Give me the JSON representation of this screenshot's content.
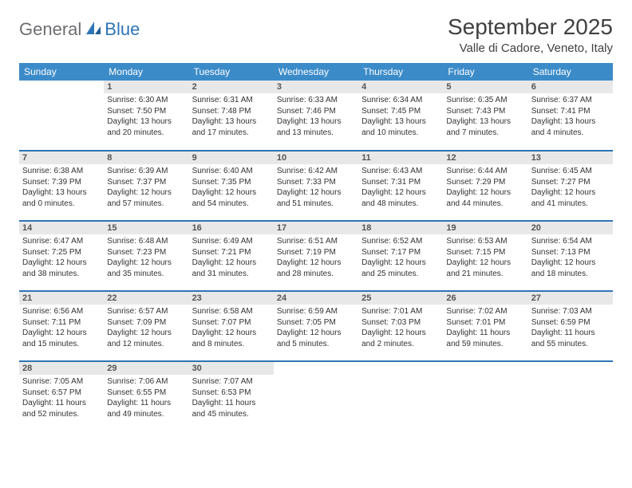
{
  "logo": {
    "part1": "General",
    "part2": "Blue"
  },
  "title": "September 2025",
  "location": "Valle di Cadore, Veneto, Italy",
  "colors": {
    "header_bg": "#3b8bc9",
    "header_text": "#ffffff",
    "border": "#2e75b6",
    "daynum_bg": "#e8e8e8",
    "logo_gray": "#6d6e71",
    "logo_blue": "#2e75b6",
    "text": "#333333",
    "title_color": "#404040"
  },
  "weekdays": [
    "Sunday",
    "Monday",
    "Tuesday",
    "Wednesday",
    "Thursday",
    "Friday",
    "Saturday"
  ],
  "weeks": [
    [
      {
        "day": "",
        "lines": [
          "",
          "",
          "",
          ""
        ]
      },
      {
        "day": "1",
        "lines": [
          "Sunrise: 6:30 AM",
          "Sunset: 7:50 PM",
          "Daylight: 13 hours",
          "and 20 minutes."
        ]
      },
      {
        "day": "2",
        "lines": [
          "Sunrise: 6:31 AM",
          "Sunset: 7:48 PM",
          "Daylight: 13 hours",
          "and 17 minutes."
        ]
      },
      {
        "day": "3",
        "lines": [
          "Sunrise: 6:33 AM",
          "Sunset: 7:46 PM",
          "Daylight: 13 hours",
          "and 13 minutes."
        ]
      },
      {
        "day": "4",
        "lines": [
          "Sunrise: 6:34 AM",
          "Sunset: 7:45 PM",
          "Daylight: 13 hours",
          "and 10 minutes."
        ]
      },
      {
        "day": "5",
        "lines": [
          "Sunrise: 6:35 AM",
          "Sunset: 7:43 PM",
          "Daylight: 13 hours",
          "and 7 minutes."
        ]
      },
      {
        "day": "6",
        "lines": [
          "Sunrise: 6:37 AM",
          "Sunset: 7:41 PM",
          "Daylight: 13 hours",
          "and 4 minutes."
        ]
      }
    ],
    [
      {
        "day": "7",
        "lines": [
          "Sunrise: 6:38 AM",
          "Sunset: 7:39 PM",
          "Daylight: 13 hours",
          "and 0 minutes."
        ]
      },
      {
        "day": "8",
        "lines": [
          "Sunrise: 6:39 AM",
          "Sunset: 7:37 PM",
          "Daylight: 12 hours",
          "and 57 minutes."
        ]
      },
      {
        "day": "9",
        "lines": [
          "Sunrise: 6:40 AM",
          "Sunset: 7:35 PM",
          "Daylight: 12 hours",
          "and 54 minutes."
        ]
      },
      {
        "day": "10",
        "lines": [
          "Sunrise: 6:42 AM",
          "Sunset: 7:33 PM",
          "Daylight: 12 hours",
          "and 51 minutes."
        ]
      },
      {
        "day": "11",
        "lines": [
          "Sunrise: 6:43 AM",
          "Sunset: 7:31 PM",
          "Daylight: 12 hours",
          "and 48 minutes."
        ]
      },
      {
        "day": "12",
        "lines": [
          "Sunrise: 6:44 AM",
          "Sunset: 7:29 PM",
          "Daylight: 12 hours",
          "and 44 minutes."
        ]
      },
      {
        "day": "13",
        "lines": [
          "Sunrise: 6:45 AM",
          "Sunset: 7:27 PM",
          "Daylight: 12 hours",
          "and 41 minutes."
        ]
      }
    ],
    [
      {
        "day": "14",
        "lines": [
          "Sunrise: 6:47 AM",
          "Sunset: 7:25 PM",
          "Daylight: 12 hours",
          "and 38 minutes."
        ]
      },
      {
        "day": "15",
        "lines": [
          "Sunrise: 6:48 AM",
          "Sunset: 7:23 PM",
          "Daylight: 12 hours",
          "and 35 minutes."
        ]
      },
      {
        "day": "16",
        "lines": [
          "Sunrise: 6:49 AM",
          "Sunset: 7:21 PM",
          "Daylight: 12 hours",
          "and 31 minutes."
        ]
      },
      {
        "day": "17",
        "lines": [
          "Sunrise: 6:51 AM",
          "Sunset: 7:19 PM",
          "Daylight: 12 hours",
          "and 28 minutes."
        ]
      },
      {
        "day": "18",
        "lines": [
          "Sunrise: 6:52 AM",
          "Sunset: 7:17 PM",
          "Daylight: 12 hours",
          "and 25 minutes."
        ]
      },
      {
        "day": "19",
        "lines": [
          "Sunrise: 6:53 AM",
          "Sunset: 7:15 PM",
          "Daylight: 12 hours",
          "and 21 minutes."
        ]
      },
      {
        "day": "20",
        "lines": [
          "Sunrise: 6:54 AM",
          "Sunset: 7:13 PM",
          "Daylight: 12 hours",
          "and 18 minutes."
        ]
      }
    ],
    [
      {
        "day": "21",
        "lines": [
          "Sunrise: 6:56 AM",
          "Sunset: 7:11 PM",
          "Daylight: 12 hours",
          "and 15 minutes."
        ]
      },
      {
        "day": "22",
        "lines": [
          "Sunrise: 6:57 AM",
          "Sunset: 7:09 PM",
          "Daylight: 12 hours",
          "and 12 minutes."
        ]
      },
      {
        "day": "23",
        "lines": [
          "Sunrise: 6:58 AM",
          "Sunset: 7:07 PM",
          "Daylight: 12 hours",
          "and 8 minutes."
        ]
      },
      {
        "day": "24",
        "lines": [
          "Sunrise: 6:59 AM",
          "Sunset: 7:05 PM",
          "Daylight: 12 hours",
          "and 5 minutes."
        ]
      },
      {
        "day": "25",
        "lines": [
          "Sunrise: 7:01 AM",
          "Sunset: 7:03 PM",
          "Daylight: 12 hours",
          "and 2 minutes."
        ]
      },
      {
        "day": "26",
        "lines": [
          "Sunrise: 7:02 AM",
          "Sunset: 7:01 PM",
          "Daylight: 11 hours",
          "and 59 minutes."
        ]
      },
      {
        "day": "27",
        "lines": [
          "Sunrise: 7:03 AM",
          "Sunset: 6:59 PM",
          "Daylight: 11 hours",
          "and 55 minutes."
        ]
      }
    ],
    [
      {
        "day": "28",
        "lines": [
          "Sunrise: 7:05 AM",
          "Sunset: 6:57 PM",
          "Daylight: 11 hours",
          "and 52 minutes."
        ]
      },
      {
        "day": "29",
        "lines": [
          "Sunrise: 7:06 AM",
          "Sunset: 6:55 PM",
          "Daylight: 11 hours",
          "and 49 minutes."
        ]
      },
      {
        "day": "30",
        "lines": [
          "Sunrise: 7:07 AM",
          "Sunset: 6:53 PM",
          "Daylight: 11 hours",
          "and 45 minutes."
        ]
      },
      {
        "day": "",
        "lines": [
          "",
          "",
          "",
          ""
        ]
      },
      {
        "day": "",
        "lines": [
          "",
          "",
          "",
          ""
        ]
      },
      {
        "day": "",
        "lines": [
          "",
          "",
          "",
          ""
        ]
      },
      {
        "day": "",
        "lines": [
          "",
          "",
          "",
          ""
        ]
      }
    ]
  ]
}
